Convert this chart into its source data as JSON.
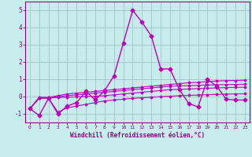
{
  "xlabel": "Windchill (Refroidissement éolien,°C)",
  "background_color": "#c8ecec",
  "grid_color": "#a0c8c8",
  "line_color": "#bb00bb",
  "xlim": [
    -0.5,
    23.5
  ],
  "ylim": [
    -1.5,
    5.5
  ],
  "yticks": [
    -1,
    0,
    1,
    2,
    3,
    4,
    5
  ],
  "xticks": [
    0,
    1,
    2,
    3,
    4,
    5,
    6,
    7,
    8,
    9,
    10,
    11,
    12,
    13,
    14,
    15,
    16,
    17,
    18,
    19,
    20,
    21,
    22,
    23
  ],
  "series": [
    {
      "x": [
        0,
        1,
        2,
        3,
        4,
        5,
        6,
        7,
        8,
        9,
        10,
        11,
        12,
        13,
        14,
        15,
        16,
        17,
        18,
        19,
        20,
        21,
        22,
        23
      ],
      "y": [
        -0.7,
        -1.1,
        -0.1,
        -1.0,
        -0.55,
        -0.35,
        0.3,
        -0.2,
        0.35,
        1.2,
        3.1,
        5.0,
        4.3,
        3.5,
        1.6,
        1.6,
        0.4,
        -0.4,
        -0.6,
        1.0,
        0.6,
        -0.15,
        -0.2,
        -0.2
      ],
      "marker": "D",
      "markersize": 2.5,
      "linewidth": 1.0,
      "zorder": 3
    },
    {
      "x": [
        0,
        1,
        2,
        3,
        4,
        5,
        6,
        7,
        8,
        9,
        10,
        11,
        12,
        13,
        14,
        15,
        16,
        17,
        18,
        19,
        20,
        21,
        22,
        23
      ],
      "y": [
        -0.7,
        -0.05,
        -0.05,
        0.05,
        0.15,
        0.2,
        0.25,
        0.3,
        0.35,
        0.4,
        0.45,
        0.5,
        0.55,
        0.6,
        0.65,
        0.7,
        0.75,
        0.8,
        0.82,
        0.87,
        0.9,
        0.92,
        0.93,
        0.95
      ],
      "marker": "D",
      "markersize": 1.5,
      "linewidth": 0.8,
      "zorder": 2
    },
    {
      "x": [
        0,
        1,
        2,
        3,
        4,
        5,
        6,
        7,
        8,
        9,
        10,
        11,
        12,
        13,
        14,
        15,
        16,
        17,
        18,
        19,
        20,
        21,
        22,
        23
      ],
      "y": [
        -0.7,
        -0.05,
        -0.05,
        0.0,
        0.05,
        0.1,
        0.15,
        0.2,
        0.25,
        0.3,
        0.35,
        0.4,
        0.45,
        0.5,
        0.55,
        0.6,
        0.62,
        0.63,
        0.65,
        0.67,
        0.68,
        0.69,
        0.7,
        0.71
      ],
      "marker": "D",
      "markersize": 1.5,
      "linewidth": 0.8,
      "zorder": 2
    },
    {
      "x": [
        0,
        1,
        2,
        3,
        4,
        5,
        6,
        7,
        8,
        9,
        10,
        11,
        12,
        13,
        14,
        15,
        16,
        17,
        18,
        19,
        20,
        21,
        22,
        23
      ],
      "y": [
        -0.7,
        -0.08,
        -0.08,
        -0.06,
        -0.04,
        -0.02,
        0.0,
        0.02,
        0.05,
        0.1,
        0.15,
        0.2,
        0.25,
        0.3,
        0.35,
        0.4,
        0.42,
        0.44,
        0.46,
        0.48,
        0.5,
        0.52,
        0.53,
        0.54
      ],
      "marker": "D",
      "markersize": 1.5,
      "linewidth": 0.8,
      "zorder": 2
    },
    {
      "x": [
        0,
        1,
        2,
        3,
        4,
        5,
        6,
        7,
        8,
        9,
        10,
        11,
        12,
        13,
        14,
        15,
        16,
        17,
        18,
        19,
        20,
        21,
        22,
        23
      ],
      "y": [
        -0.7,
        -0.1,
        -0.1,
        -0.9,
        -0.65,
        -0.55,
        -0.45,
        -0.35,
        -0.25,
        -0.2,
        -0.15,
        -0.1,
        -0.07,
        -0.04,
        -0.01,
        0.02,
        0.05,
        0.07,
        0.09,
        0.11,
        0.13,
        0.14,
        0.15,
        0.16
      ],
      "marker": "D",
      "markersize": 1.5,
      "linewidth": 0.8,
      "zorder": 2
    }
  ]
}
